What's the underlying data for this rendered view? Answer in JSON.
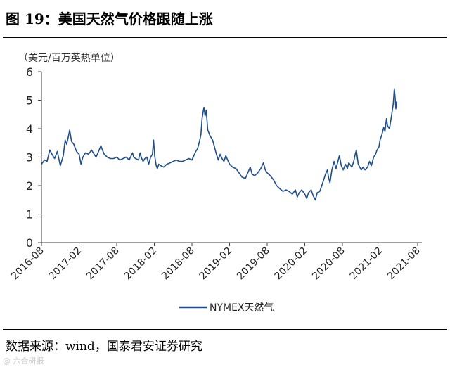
{
  "figure": {
    "title": "图 19：美国天然气价格跟随上涨",
    "source": "数据来源：wind，国泰君安证券研究",
    "watermark": "@ 六合研报"
  },
  "chart_data": {
    "type": "line",
    "title": "",
    "ylabel": "（美元/百万英热单位）",
    "xlabel": "",
    "ylim": [
      0,
      6
    ],
    "yticks": [
      "0",
      "1",
      "2",
      "3",
      "4",
      "5",
      "6"
    ],
    "xticks": [
      "2016-08",
      "2017-02",
      "2017-08",
      "2018-02",
      "2018-08",
      "2019-02",
      "2019-08",
      "2020-02",
      "2020-08",
      "2021-02",
      "2021-08"
    ],
    "grid": false,
    "legend_position": "bottom-center",
    "series": [
      {
        "name": "NYMEX天然气",
        "color": "#1f4e8c",
        "points": [
          [
            0.0,
            2.75
          ],
          [
            0.08,
            2.9
          ],
          [
            0.15,
            2.85
          ],
          [
            0.22,
            3.25
          ],
          [
            0.28,
            3.1
          ],
          [
            0.35,
            2.95
          ],
          [
            0.42,
            3.2
          ],
          [
            0.5,
            2.7
          ],
          [
            0.58,
            3.05
          ],
          [
            0.63,
            3.6
          ],
          [
            0.67,
            3.45
          ],
          [
            0.72,
            3.75
          ],
          [
            0.75,
            3.95
          ],
          [
            0.8,
            3.55
          ],
          [
            0.86,
            3.45
          ],
          [
            0.93,
            3.2
          ],
          [
            1.0,
            3.1
          ],
          [
            1.05,
            2.75
          ],
          [
            1.1,
            3.0
          ],
          [
            1.17,
            3.15
          ],
          [
            1.25,
            3.1
          ],
          [
            1.33,
            3.25
          ],
          [
            1.4,
            3.1
          ],
          [
            1.45,
            3.0
          ],
          [
            1.5,
            3.15
          ],
          [
            1.58,
            3.4
          ],
          [
            1.62,
            3.25
          ],
          [
            1.67,
            3.1
          ],
          [
            1.75,
            3.0
          ],
          [
            1.83,
            2.95
          ],
          [
            1.92,
            2.95
          ],
          [
            2.0,
            3.0
          ],
          [
            2.08,
            2.9
          ],
          [
            2.17,
            2.95
          ],
          [
            2.25,
            3.0
          ],
          [
            2.33,
            2.9
          ],
          [
            2.42,
            3.15
          ],
          [
            2.45,
            3.0
          ],
          [
            2.5,
            2.95
          ],
          [
            2.58,
            2.9
          ],
          [
            2.62,
            3.15
          ],
          [
            2.65,
            3.0
          ],
          [
            2.7,
            2.85
          ],
          [
            2.75,
            2.95
          ],
          [
            2.8,
            3.0
          ],
          [
            2.85,
            2.75
          ],
          [
            2.9,
            3.0
          ],
          [
            2.95,
            3.1
          ],
          [
            2.98,
            3.6
          ],
          [
            3.01,
            3.05
          ],
          [
            3.05,
            2.7
          ],
          [
            3.08,
            2.6
          ],
          [
            3.12,
            2.75
          ],
          [
            3.17,
            2.7
          ],
          [
            3.25,
            2.65
          ],
          [
            3.33,
            2.75
          ],
          [
            3.42,
            2.8
          ],
          [
            3.5,
            2.85
          ],
          [
            3.58,
            2.9
          ],
          [
            3.67,
            2.85
          ],
          [
            3.75,
            2.85
          ],
          [
            3.83,
            2.9
          ],
          [
            3.92,
            2.95
          ],
          [
            4.0,
            2.9
          ],
          [
            4.05,
            3.05
          ],
          [
            4.1,
            3.2
          ],
          [
            4.15,
            3.3
          ],
          [
            4.2,
            3.55
          ],
          [
            4.24,
            3.8
          ],
          [
            4.27,
            4.35
          ],
          [
            4.3,
            4.6
          ],
          [
            4.32,
            4.75
          ],
          [
            4.35,
            4.45
          ],
          [
            4.38,
            4.65
          ],
          [
            4.42,
            3.95
          ],
          [
            4.48,
            3.75
          ],
          [
            4.55,
            3.6
          ],
          [
            4.6,
            3.35
          ],
          [
            4.65,
            3.1
          ],
          [
            4.7,
            2.9
          ],
          [
            4.75,
            3.1
          ],
          [
            4.8,
            2.95
          ],
          [
            4.85,
            2.85
          ],
          [
            4.9,
            3.05
          ],
          [
            4.95,
            2.9
          ],
          [
            5.0,
            2.75
          ],
          [
            5.08,
            2.65
          ],
          [
            5.17,
            2.6
          ],
          [
            5.25,
            2.45
          ],
          [
            5.33,
            2.3
          ],
          [
            5.42,
            2.25
          ],
          [
            5.5,
            2.5
          ],
          [
            5.55,
            2.65
          ],
          [
            5.6,
            2.4
          ],
          [
            5.67,
            2.35
          ],
          [
            5.75,
            2.45
          ],
          [
            5.83,
            2.6
          ],
          [
            5.9,
            2.8
          ],
          [
            5.95,
            2.55
          ],
          [
            6.0,
            2.45
          ],
          [
            6.08,
            2.35
          ],
          [
            6.17,
            2.2
          ],
          [
            6.25,
            2.0
          ],
          [
            6.33,
            1.9
          ],
          [
            6.42,
            1.8
          ],
          [
            6.5,
            1.85
          ],
          [
            6.58,
            1.8
          ],
          [
            6.67,
            1.7
          ],
          [
            6.75,
            1.85
          ],
          [
            6.8,
            1.6
          ],
          [
            6.85,
            1.75
          ],
          [
            6.92,
            1.85
          ],
          [
            7.0,
            1.7
          ],
          [
            7.05,
            1.55
          ],
          [
            7.1,
            1.75
          ],
          [
            7.17,
            1.85
          ],
          [
            7.22,
            1.65
          ],
          [
            7.28,
            1.5
          ],
          [
            7.33,
            1.75
          ],
          [
            7.4,
            1.8
          ],
          [
            7.45,
            2.0
          ],
          [
            7.5,
            2.2
          ],
          [
            7.55,
            2.4
          ],
          [
            7.6,
            2.55
          ],
          [
            7.63,
            2.3
          ],
          [
            7.67,
            2.1
          ],
          [
            7.72,
            2.55
          ],
          [
            7.78,
            2.85
          ],
          [
            7.83,
            2.6
          ],
          [
            7.88,
            2.85
          ],
          [
            7.92,
            3.05
          ],
          [
            7.97,
            2.7
          ],
          [
            8.02,
            2.55
          ],
          [
            8.08,
            2.75
          ],
          [
            8.13,
            2.6
          ],
          [
            8.17,
            2.8
          ],
          [
            8.25,
            2.65
          ],
          [
            8.3,
            2.85
          ],
          [
            8.33,
            3.05
          ],
          [
            8.37,
            3.25
          ],
          [
            8.42,
            2.75
          ],
          [
            8.5,
            2.55
          ],
          [
            8.55,
            2.65
          ],
          [
            8.6,
            2.55
          ],
          [
            8.67,
            2.65
          ],
          [
            8.72,
            2.85
          ],
          [
            8.77,
            2.7
          ],
          [
            8.83,
            3.0
          ],
          [
            8.88,
            3.1
          ],
          [
            8.92,
            3.25
          ],
          [
            8.97,
            3.35
          ],
          [
            9.0,
            3.6
          ],
          [
            9.05,
            3.8
          ],
          [
            9.1,
            4.05
          ],
          [
            9.13,
            3.9
          ],
          [
            9.17,
            4.35
          ],
          [
            9.2,
            4.1
          ],
          [
            9.25,
            4.0
          ],
          [
            9.3,
            4.4
          ],
          [
            9.35,
            4.85
          ],
          [
            9.38,
            5.4
          ],
          [
            9.4,
            5.1
          ],
          [
            9.42,
            4.7
          ],
          [
            9.44,
            4.95
          ]
        ]
      }
    ]
  }
}
